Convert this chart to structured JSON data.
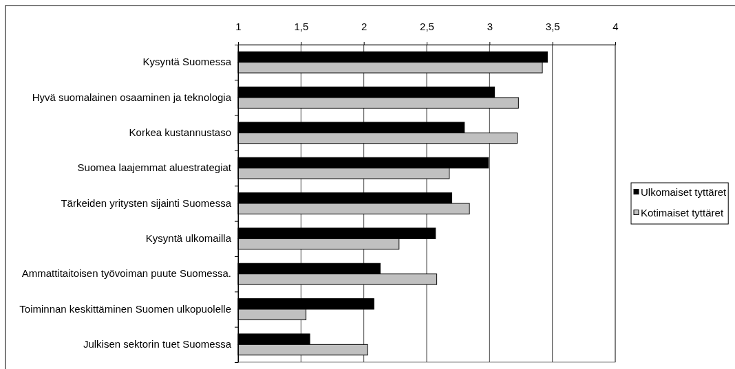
{
  "chart_data": {
    "type": "bar",
    "orientation": "horizontal",
    "categories": [
      "Kysyntä Suomessa",
      "Hyvä suomalainen osaaminen ja teknologia",
      "Korkea kustannustaso",
      "Suomea laajemmat aluestrategiat",
      "Tärkeiden yritysten sijainti Suomessa",
      "Kysyntä ulkomailla",
      "Ammattitaitoisen työvoiman puute Suomessa.",
      "Toiminnan keskittäminen Suomen ulkopuolelle",
      "Julkisen sektorin tuet Suomessa"
    ],
    "series": [
      {
        "name": "Ulkomaiset tyttäret",
        "color": "#000000",
        "values": [
          3.46,
          3.04,
          2.8,
          2.99,
          2.7,
          2.57,
          2.13,
          2.08,
          1.57
        ]
      },
      {
        "name": "Kotimaiset tyttäret",
        "color": "#c0c0c0",
        "values": [
          3.42,
          3.23,
          3.22,
          2.68,
          2.84,
          2.28,
          2.58,
          1.54,
          2.03
        ]
      }
    ],
    "xlim": [
      1,
      4
    ],
    "xticks": [
      1,
      {
        "value": 1.5,
        "label": "1,5"
      },
      2,
      {
        "value": 2.5,
        "label": "2,5"
      },
      3,
      {
        "value": 3.5,
        "label": "3,5"
      },
      4
    ],
    "grid": "x",
    "legend": "right"
  }
}
